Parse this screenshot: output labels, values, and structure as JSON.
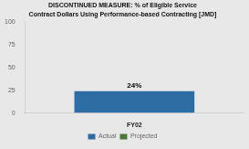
{
  "chart_data": {
    "type": "bar",
    "title": "DISCONTINUED MEASURE: % of Eligible Service",
    "subtitle": "Contract Dollars Using Performance-based Contracting [JMD]",
    "categories": [
      "FY02"
    ],
    "series": [
      {
        "name": "Actual",
        "color": "#2e6da4",
        "values": [
          24
        ],
        "value_labels": [
          "24%"
        ]
      },
      {
        "name": "Projected",
        "color": "#4a7a3a",
        "values": [
          null
        ]
      }
    ],
    "ylim": [
      0,
      100
    ],
    "yticks": [
      0,
      25,
      50,
      75,
      100
    ],
    "grid": false,
    "legend": "bottom",
    "data_labels": true
  }
}
